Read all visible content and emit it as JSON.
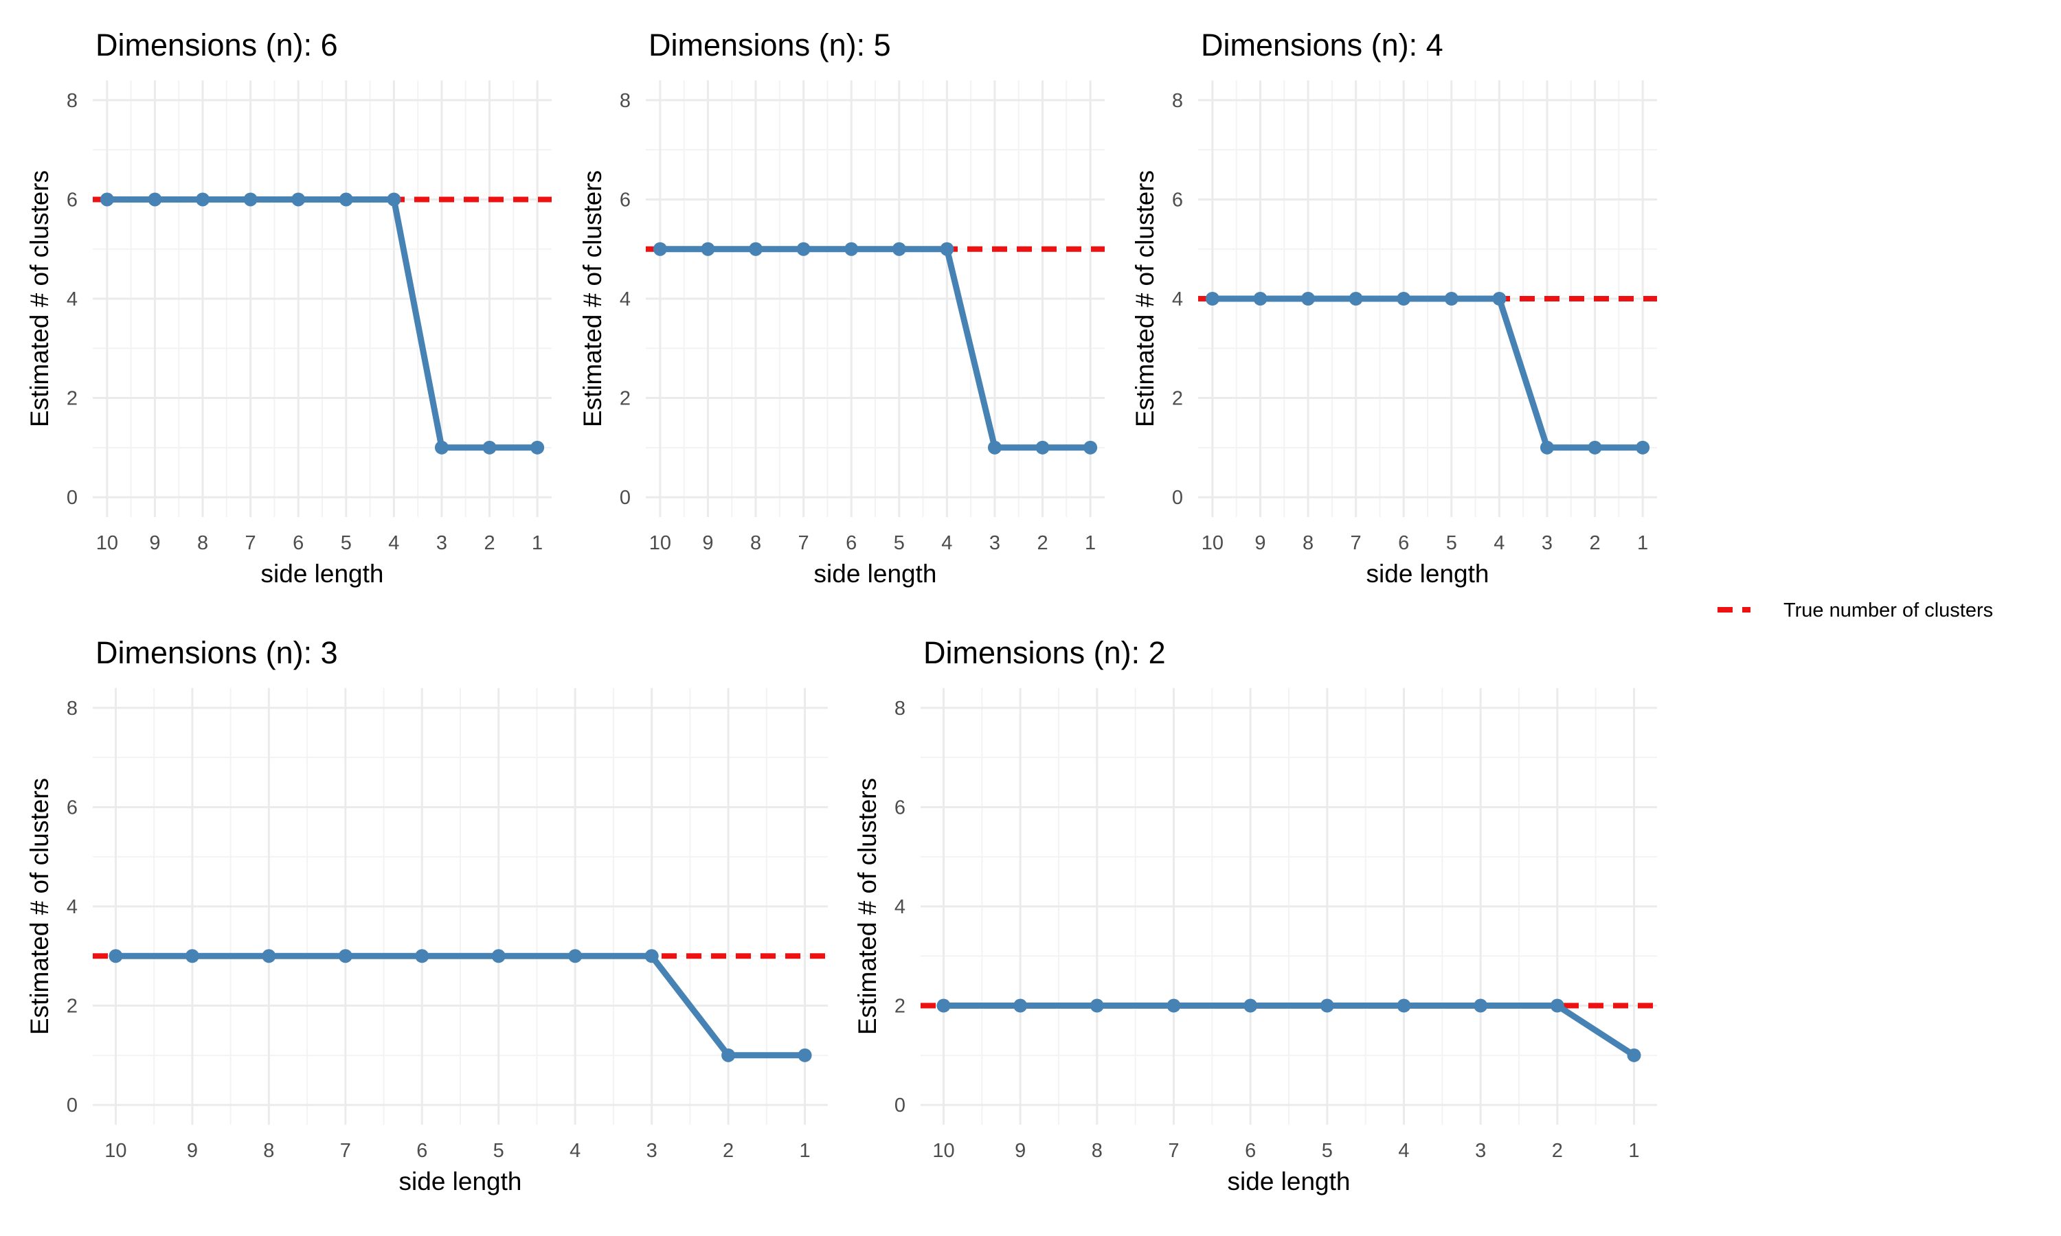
{
  "chart_data": [
    {
      "type": "line",
      "title": "Dimensions (n): 6",
      "xlabel": "side length",
      "ylabel": "Estimated # of clusters",
      "categories": [
        "10",
        "9",
        "8",
        "7",
        "6",
        "5",
        "4",
        "3",
        "2",
        "1"
      ],
      "values": [
        6,
        6,
        6,
        6,
        6,
        6,
        6,
        1,
        1,
        1
      ],
      "true_clusters": 6,
      "y_ticks": [
        0,
        2,
        4,
        6,
        8
      ],
      "ylim": [
        -0.4,
        8.4
      ],
      "grid": true
    },
    {
      "type": "line",
      "title": "Dimensions (n): 5",
      "xlabel": "side length",
      "ylabel": "Estimated # of clusters",
      "categories": [
        "10",
        "9",
        "8",
        "7",
        "6",
        "5",
        "4",
        "3",
        "2",
        "1"
      ],
      "values": [
        5,
        5,
        5,
        5,
        5,
        5,
        5,
        1,
        1,
        1
      ],
      "true_clusters": 5,
      "y_ticks": [
        0,
        2,
        4,
        6,
        8
      ],
      "ylim": [
        -0.4,
        8.4
      ],
      "grid": true
    },
    {
      "type": "line",
      "title": "Dimensions (n): 4",
      "xlabel": "side length",
      "ylabel": "Estimated # of clusters",
      "categories": [
        "10",
        "9",
        "8",
        "7",
        "6",
        "5",
        "4",
        "3",
        "2",
        "1"
      ],
      "values": [
        4,
        4,
        4,
        4,
        4,
        4,
        4,
        1,
        1,
        1
      ],
      "true_clusters": 4,
      "y_ticks": [
        0,
        2,
        4,
        6,
        8
      ],
      "ylim": [
        -0.4,
        8.4
      ],
      "grid": true
    },
    {
      "type": "line",
      "title": "Dimensions (n): 3",
      "xlabel": "side length",
      "ylabel": "Estimated # of clusters",
      "categories": [
        "10",
        "9",
        "8",
        "7",
        "6",
        "5",
        "4",
        "3",
        "2",
        "1"
      ],
      "values": [
        3,
        3,
        3,
        3,
        3,
        3,
        3,
        3,
        1,
        1
      ],
      "true_clusters": 3,
      "y_ticks": [
        0,
        2,
        4,
        6,
        8
      ],
      "ylim": [
        -0.4,
        8.4
      ],
      "grid": true
    },
    {
      "type": "line",
      "title": "Dimensions (n): 2",
      "xlabel": "side length",
      "ylabel": "Estimated # of clusters",
      "categories": [
        "10",
        "9",
        "8",
        "7",
        "6",
        "5",
        "4",
        "3",
        "2",
        "1"
      ],
      "values": [
        2,
        2,
        2,
        2,
        2,
        2,
        2,
        2,
        2,
        1
      ],
      "true_clusters": 2,
      "y_ticks": [
        0,
        2,
        4,
        6,
        8
      ],
      "ylim": [
        -0.4,
        8.4
      ],
      "grid": true
    }
  ],
  "legend": {
    "label": "True number of clusters",
    "placement": "right"
  },
  "colors": {
    "estimate_line": "#4682b4",
    "true_line": "#ee1111",
    "grid_major": "#ebebeb",
    "grid_minor": "#f3f3f3"
  }
}
